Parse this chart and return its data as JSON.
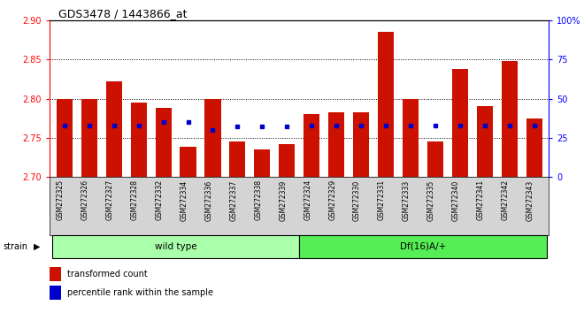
{
  "title": "GDS3478 / 1443866_at",
  "samples": [
    "GSM272325",
    "GSM272326",
    "GSM272327",
    "GSM272328",
    "GSM272332",
    "GSM272334",
    "GSM272336",
    "GSM272337",
    "GSM272338",
    "GSM272339",
    "GSM272324",
    "GSM272329",
    "GSM272330",
    "GSM272331",
    "GSM272333",
    "GSM272335",
    "GSM272340",
    "GSM272341",
    "GSM272342",
    "GSM272343"
  ],
  "transformed_counts": [
    2.8,
    2.8,
    2.822,
    2.795,
    2.788,
    2.738,
    2.8,
    2.745,
    2.735,
    2.742,
    2.78,
    2.782,
    2.782,
    2.885,
    2.8,
    2.745,
    2.838,
    2.79,
    2.848,
    2.775
  ],
  "percentile_ranks": [
    33,
    33,
    33,
    33,
    35,
    35,
    30,
    32,
    32,
    32,
    33,
    33,
    33,
    33,
    33,
    33,
    33,
    33,
    33,
    33
  ],
  "groups": [
    "wild type",
    "wild type",
    "wild type",
    "wild type",
    "wild type",
    "wild type",
    "wild type",
    "wild type",
    "wild type",
    "wild type",
    "Df(16)A/+",
    "Df(16)A/+",
    "Df(16)A/+",
    "Df(16)A/+",
    "Df(16)A/+",
    "Df(16)A/+",
    "Df(16)A/+",
    "Df(16)A/+",
    "Df(16)A/+",
    "Df(16)A/+"
  ],
  "group_labels": [
    "wild type",
    "Df(16)A/+"
  ],
  "group_colors_light": [
    "#aaffaa",
    "#55ee55"
  ],
  "bar_color": "#CC1100",
  "dot_color": "#0000CC",
  "ymin": 2.7,
  "ymax": 2.9,
  "yticks": [
    2.7,
    2.75,
    2.8,
    2.85,
    2.9
  ],
  "y2ticks": [
    0,
    25,
    50,
    75,
    100
  ],
  "grid_values": [
    2.75,
    2.8,
    2.85
  ],
  "xtick_bg": "#d4d4d4",
  "legend_items": [
    "transformed count",
    "percentile rank within the sample"
  ]
}
